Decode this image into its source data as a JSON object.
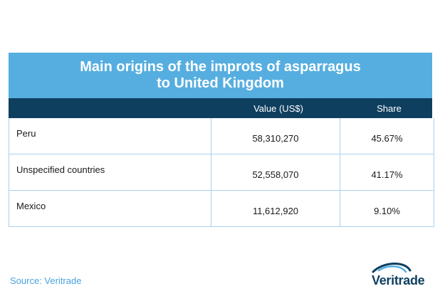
{
  "title_line1": "Main origins of the improts of asparragus",
  "title_line2": "to United Kingdom",
  "columns": {
    "country": "",
    "value": "Value (US$)",
    "share": "Share"
  },
  "rows": [
    {
      "country": "Peru",
      "value": "58,310,270",
      "share": "45.67%"
    },
    {
      "country": "Unspecified countries",
      "value": "52,558,070",
      "share": "41.17%"
    },
    {
      "country": "Mexico",
      "value": "11,612,920",
      "share": "9.10%"
    }
  ],
  "source": "Source: Veritrade",
  "logo_text": "Veritrade",
  "colors": {
    "title_bg": "#56aee0",
    "header_bg": "#0f3f5f",
    "border": "#a8d1ec",
    "source": "#4aa3dc"
  },
  "chart_data": {
    "type": "table",
    "title": "Main origins of the improts of asparragus to United Kingdom",
    "columns": [
      "",
      "Value (US$)",
      "Share"
    ],
    "rows": [
      [
        "Peru",
        58310270,
        45.67
      ],
      [
        "Unspecified countries",
        52558070,
        41.17
      ],
      [
        "Mexico",
        11612920,
        9.1
      ]
    ]
  }
}
